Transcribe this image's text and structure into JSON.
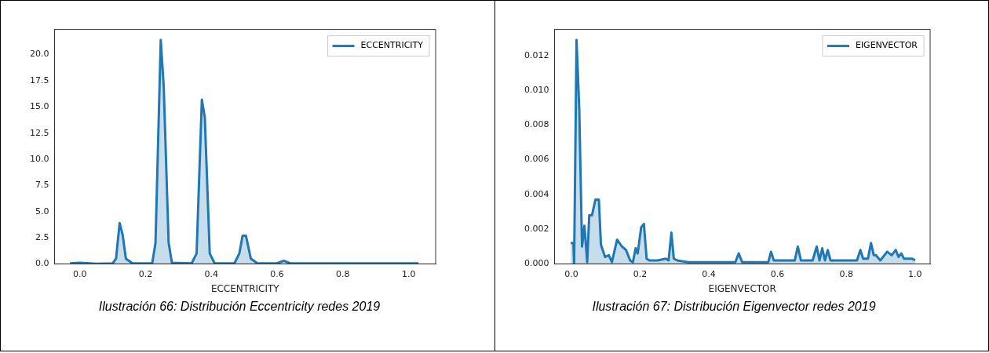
{
  "chart_data": [
    {
      "type": "area",
      "xlabel": "ECCENTRICITY",
      "legend": "top right",
      "grid": false,
      "x": [
        -0.03,
        0,
        0.05,
        0.1,
        0.11,
        0.121,
        0.13,
        0.14,
        0.16,
        0.22,
        0.23,
        0.246,
        0.255,
        0.27,
        0.28,
        0.34,
        0.355,
        0.371,
        0.38,
        0.395,
        0.41,
        0.47,
        0.485,
        0.495,
        0.505,
        0.52,
        0.54,
        0.6,
        0.62,
        0.64,
        0.75,
        1.03
      ],
      "series": [
        {
          "name": "ECCENTRICITY",
          "color": "#1f77b4",
          "values": [
            0.05,
            0.1,
            0.02,
            0.05,
            0.5,
            3.9,
            2.8,
            0.5,
            0.05,
            0.05,
            2,
            21.4,
            17,
            2,
            0.1,
            0.05,
            1,
            15.7,
            14,
            1,
            0.05,
            0.05,
            1,
            2.7,
            2.7,
            0.5,
            0.05,
            0.05,
            0.3,
            0.05,
            0.05,
            0.05
          ]
        }
      ],
      "xlim": [
        -0.077,
        1.082
      ],
      "ylim": [
        0,
        22.4
      ],
      "xticks": [
        {
          "value": 0,
          "label": "0.0"
        },
        {
          "value": 0.2,
          "label": "0.2"
        },
        {
          "value": 0.4,
          "label": "0.4"
        },
        {
          "value": 0.6,
          "label": "0.6"
        },
        {
          "value": 0.8,
          "label": "0.8"
        },
        {
          "value": 1,
          "label": "1.0"
        }
      ],
      "yticks": [
        {
          "value": 0,
          "label": "0.0"
        },
        2.5,
        {
          "value": 5,
          "label": "5.0"
        },
        7.5,
        {
          "value": 10,
          "label": "10.0"
        },
        12.5,
        {
          "value": 15,
          "label": "15.0"
        },
        17.5,
        {
          "value": 20,
          "label": "20.0"
        }
      ],
      "annotations": [
        "Ilustración 66: Distribución Eccentricity redes 2019"
      ]
    },
    {
      "type": "area",
      "xlabel": "EIGENVECTOR",
      "legend": "top right",
      "grid": false,
      "x": [
        -0.002,
        0.006,
        0.008,
        0.015,
        0.023,
        0.031,
        0.038,
        0.046,
        0.052,
        0.06,
        0.07,
        0.08,
        0.086,
        0.098,
        0.109,
        0.118,
        0.133,
        0.147,
        0.159,
        0.171,
        0.179,
        0.187,
        0.193,
        0.203,
        0.211,
        0.219,
        0.227,
        0.251,
        0.275,
        0.283,
        0.291,
        0.298,
        0.308,
        0.34,
        0.477,
        0.487,
        0.497,
        0.573,
        0.581,
        0.589,
        0.65,
        0.659,
        0.668,
        0.702,
        0.714,
        0.722,
        0.73,
        0.738,
        0.746,
        0.754,
        0.831,
        0.841,
        0.849,
        0.863,
        0.872,
        0.88,
        0.886,
        0.899,
        0.919,
        0.932,
        0.944,
        0.952,
        0.96,
        0.968,
        0.98,
        0.992,
        1
      ],
      "series": [
        {
          "name": "EIGENVECTOR",
          "color": "#1f77b4",
          "values": [
            0.0012,
            0.0012,
            0,
            0.0129,
            0.0089,
            0.001,
            0.0022,
            0.0001,
            0.0028,
            0.0028,
            0.0037,
            0.0037,
            0.0011,
            0.0004,
            0.0005,
            0.0001,
            0.0014,
            0.001,
            0.0008,
            0.0002,
            0.0001,
            0.0009,
            0.0006,
            0.0021,
            0.0023,
            0.0003,
            0.0002,
            0.0002,
            0.0003,
            0.0002,
            0.0018,
            0.0003,
            0.0002,
            0.0001,
            0.0001,
            0.0006,
            0.0001,
            0.0001,
            0.0007,
            0.0002,
            0.0002,
            0.001,
            0.0002,
            0.0002,
            0.001,
            0.0002,
            0.0009,
            0.0002,
            0.0008,
            0.0002,
            0.0002,
            0.0008,
            0.0003,
            0.0003,
            0.0012,
            0.0005,
            0.0005,
            0.0002,
            0.0007,
            0.0005,
            0.0008,
            0.0004,
            0.0006,
            0.0003,
            0.0003,
            0.0003,
            0.0002
          ]
        }
      ],
      "xlim": [
        -0.049,
        1.044
      ],
      "ylim": [
        0,
        0.0135
      ],
      "xticks": [
        {
          "value": 0,
          "label": "0.0"
        },
        {
          "value": 0.2,
          "label": "0.2"
        },
        {
          "value": 0.4,
          "label": "0.4"
        },
        {
          "value": 0.6,
          "label": "0.6"
        },
        {
          "value": 0.8,
          "label": "0.8"
        },
        {
          "value": 1,
          "label": "1.0"
        }
      ],
      "yticks": [
        {
          "value": 0,
          "label": "0.000"
        },
        {
          "value": 0.002,
          "label": "0.002"
        },
        {
          "value": 0.004,
          "label": "0.004"
        },
        {
          "value": 0.006,
          "label": "0.006"
        },
        {
          "value": 0.008,
          "label": "0.008"
        },
        {
          "value": 0.01,
          "label": "0.010"
        },
        {
          "value": 0.012,
          "label": "0.012"
        }
      ],
      "annotations": [
        "Ilustración 67: Distribución Eigenvector redes 2019"
      ]
    }
  ]
}
